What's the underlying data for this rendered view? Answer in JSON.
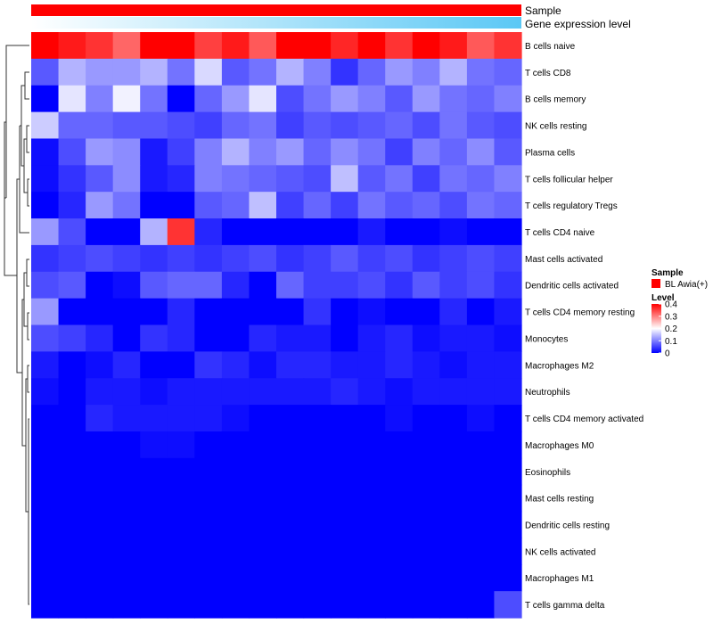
{
  "chart_data": {
    "type": "heatmap",
    "title": "",
    "annotation_tracks": [
      {
        "name": "Sample",
        "values": [
          "BL Awia(+)",
          "BL Awia(+)",
          "BL Awia(+)",
          "BL Awia(+)",
          "BL Awia(+)",
          "BL Awia(+)",
          "BL Awia(+)",
          "BL Awia(+)",
          "BL Awia(+)",
          "BL Awia(+)",
          "BL Awia(+)",
          "BL Awia(+)",
          "BL Awia(+)",
          "BL Awia(+)",
          "BL Awia(+)",
          "BL Awia(+)",
          "BL Awia(+)",
          "BL Awia(+)"
        ]
      },
      {
        "name": "Gene expression level",
        "gradient": [
          "#ffffff",
          "#5bc8f5"
        ]
      }
    ],
    "rows": [
      "B cells naive",
      "T cells CD8",
      "B cells memory",
      "NK cells resting",
      "Plasma cells",
      "T cells follicular helper",
      "T cells regulatory  Tregs",
      "T cells CD4 naive",
      "Mast cells activated",
      "Dendritic cells activated",
      "T cells CD4 memory resting",
      "Monocytes",
      "Macrophages M2",
      "Neutrophils",
      "T cells CD4 memory activated",
      "Macrophages M0",
      "Eosinophils",
      "Mast cells resting",
      "Dendritic cells resting",
      "NK cells activated",
      "Macrophages M1",
      "T cells gamma delta"
    ],
    "n_columns": 18,
    "values": [
      [
        0.43,
        0.38,
        0.36,
        0.32,
        0.4,
        0.43,
        0.35,
        0.38,
        0.33,
        0.42,
        0.42,
        0.37,
        0.4,
        0.36,
        0.42,
        0.38,
        0.33,
        0.36
      ],
      [
        0.07,
        0.14,
        0.12,
        0.12,
        0.14,
        0.09,
        0.17,
        0.07,
        0.09,
        0.14,
        0.1,
        0.04,
        0.08,
        0.12,
        0.1,
        0.14,
        0.09,
        0.08
      ],
      [
        0.0,
        0.18,
        0.1,
        0.19,
        0.09,
        0.0,
        0.08,
        0.12,
        0.18,
        0.06,
        0.09,
        0.12,
        0.1,
        0.07,
        0.12,
        0.09,
        0.08,
        0.1
      ],
      [
        0.16,
        0.08,
        0.08,
        0.07,
        0.07,
        0.06,
        0.05,
        0.08,
        0.09,
        0.05,
        0.07,
        0.06,
        0.07,
        0.08,
        0.06,
        0.09,
        0.07,
        0.06
      ],
      [
        0.01,
        0.06,
        0.12,
        0.11,
        0.02,
        0.05,
        0.1,
        0.14,
        0.1,
        0.12,
        0.08,
        0.11,
        0.09,
        0.05,
        0.1,
        0.08,
        0.11,
        0.07
      ],
      [
        0.01,
        0.04,
        0.07,
        0.11,
        0.02,
        0.03,
        0.1,
        0.09,
        0.08,
        0.07,
        0.06,
        0.15,
        0.07,
        0.09,
        0.05,
        0.09,
        0.08,
        0.1
      ],
      [
        0.0,
        0.03,
        0.12,
        0.09,
        0.0,
        0.0,
        0.07,
        0.08,
        0.15,
        0.05,
        0.08,
        0.05,
        0.09,
        0.07,
        0.08,
        0.06,
        0.09,
        0.08
      ],
      [
        0.12,
        0.06,
        0.0,
        0.0,
        0.14,
        0.36,
        0.03,
        0.0,
        0.0,
        0.0,
        0.0,
        0.0,
        0.02,
        0.0,
        0.0,
        0.01,
        0.0,
        0.0
      ],
      [
        0.04,
        0.05,
        0.06,
        0.05,
        0.04,
        0.05,
        0.04,
        0.05,
        0.06,
        0.04,
        0.05,
        0.07,
        0.05,
        0.06,
        0.04,
        0.05,
        0.06,
        0.05
      ],
      [
        0.06,
        0.07,
        0.0,
        0.01,
        0.07,
        0.08,
        0.08,
        0.03,
        0.0,
        0.08,
        0.05,
        0.05,
        0.06,
        0.04,
        0.07,
        0.05,
        0.06,
        0.04
      ],
      [
        0.12,
        0.0,
        0.0,
        0.0,
        0.0,
        0.03,
        0.0,
        0.0,
        0.0,
        0.0,
        0.04,
        0.0,
        0.01,
        0.0,
        0.0,
        0.03,
        0.0,
        0.02
      ],
      [
        0.06,
        0.05,
        0.03,
        0.0,
        0.04,
        0.03,
        0.0,
        0.0,
        0.03,
        0.02,
        0.02,
        0.0,
        0.02,
        0.03,
        0.01,
        0.02,
        0.02,
        0.01
      ],
      [
        0.02,
        0.0,
        0.01,
        0.03,
        0.0,
        0.0,
        0.04,
        0.03,
        0.01,
        0.03,
        0.03,
        0.02,
        0.02,
        0.03,
        0.02,
        0.01,
        0.02,
        0.02
      ],
      [
        0.01,
        0.0,
        0.02,
        0.02,
        0.01,
        0.02,
        0.02,
        0.02,
        0.02,
        0.02,
        0.02,
        0.03,
        0.02,
        0.01,
        0.02,
        0.02,
        0.02,
        0.02
      ],
      [
        0.0,
        0.0,
        0.03,
        0.02,
        0.02,
        0.02,
        0.02,
        0.01,
        0.0,
        0.0,
        0.0,
        0.0,
        0.0,
        0.01,
        0.0,
        0.0,
        0.01,
        0.0
      ],
      [
        0.0,
        0.0,
        0.0,
        0.0,
        0.01,
        0.01,
        0.0,
        0.0,
        0.0,
        0.0,
        0.0,
        0.0,
        0.0,
        0.0,
        0.0,
        0.0,
        0.0,
        0.0
      ],
      [
        0.0,
        0.0,
        0.0,
        0.0,
        0.0,
        0.0,
        0.0,
        0.0,
        0.0,
        0.0,
        0.0,
        0.0,
        0.0,
        0.0,
        0.0,
        0.0,
        0.0,
        0.0
      ],
      [
        0.0,
        0.0,
        0.0,
        0.0,
        0.0,
        0.0,
        0.0,
        0.0,
        0.0,
        0.0,
        0.0,
        0.0,
        0.0,
        0.0,
        0.0,
        0.0,
        0.0,
        0.0
      ],
      [
        0.0,
        0.0,
        0.0,
        0.0,
        0.0,
        0.0,
        0.0,
        0.0,
        0.0,
        0.0,
        0.0,
        0.0,
        0.0,
        0.0,
        0.0,
        0.0,
        0.0,
        0.0
      ],
      [
        0.0,
        0.0,
        0.0,
        0.0,
        0.0,
        0.0,
        0.0,
        0.0,
        0.0,
        0.0,
        0.0,
        0.0,
        0.0,
        0.0,
        0.0,
        0.0,
        0.0,
        0.0
      ],
      [
        0.0,
        0.0,
        0.0,
        0.0,
        0.0,
        0.0,
        0.0,
        0.0,
        0.0,
        0.0,
        0.0,
        0.0,
        0.0,
        0.0,
        0.0,
        0.0,
        0.0,
        0.0
      ],
      [
        0.0,
        0.0,
        0.0,
        0.0,
        0.0,
        0.0,
        0.0,
        0.0,
        0.0,
        0.0,
        0.0,
        0.0,
        0.0,
        0.0,
        0.0,
        0.0,
        0.0,
        0.06
      ]
    ],
    "color_scale": {
      "min": 0,
      "max": 0.4,
      "stops": [
        {
          "value": 0.0,
          "color": "#0000ff"
        },
        {
          "value": 0.2,
          "color": "#ffffff"
        },
        {
          "value": 0.4,
          "color": "#ff0000"
        }
      ]
    },
    "legend": {
      "placement": "right",
      "sample_title": "Sample",
      "sample_label": "BL Awia(+)",
      "sample_color": "#ff0000",
      "level_title": "Level",
      "ticks": [
        0,
        0.1,
        0.2,
        0.3,
        0.4
      ],
      "tick_labels": [
        "0",
        "0.1",
        "0.2",
        "0.3",
        "0.4"
      ]
    },
    "row_dendrogram": true
  }
}
